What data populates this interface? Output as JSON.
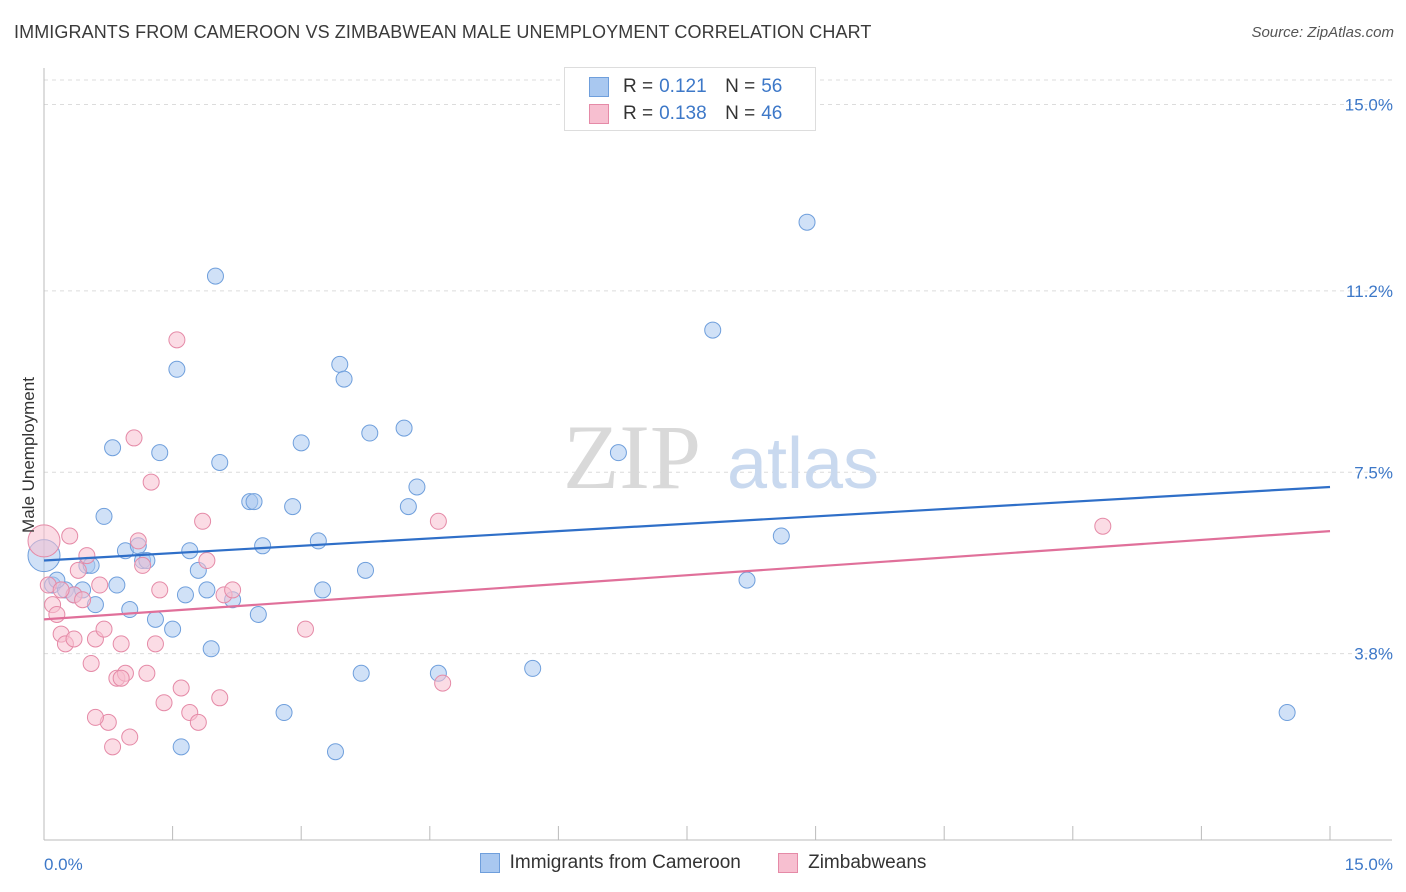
{
  "title": "IMMIGRANTS FROM CAMEROON VS ZIMBABWEAN MALE UNEMPLOYMENT CORRELATION CHART",
  "source": "Source: ZipAtlas.com",
  "watermark": {
    "zip": "ZIP",
    "atlas": "atlas"
  },
  "legend_top": [
    {
      "r_label": "R =",
      "r_value": "0.121",
      "n_label": "N =",
      "n_value": "56",
      "color": "#a9c8f0",
      "border": "#6f9fdc"
    },
    {
      "r_label": "R =",
      "r_value": "0.138",
      "n_label": "N =",
      "n_value": "46",
      "color": "#f7bfd0",
      "border": "#e58aa7"
    }
  ],
  "legend_bottom": [
    {
      "label": "Immigrants from Cameroon",
      "color": "#a9c8f0",
      "border": "#6f9fdc"
    },
    {
      "label": "Zimbabweans",
      "color": "#f7bfd0",
      "border": "#e58aa7"
    }
  ],
  "chart_data": {
    "type": "scatter",
    "title": "IMMIGRANTS FROM CAMEROON VS ZIMBABWEAN MALE UNEMPLOYMENT CORRELATION CHART",
    "xlabel": "",
    "ylabel": "Male Unemployment",
    "xlim": [
      0,
      15
    ],
    "ylim": [
      0,
      15.5
    ],
    "x_tick_labels": [
      {
        "value": 0,
        "label": "0.0%"
      },
      {
        "value": 15,
        "label": "15.0%"
      }
    ],
    "x_ticks_minor": [
      0,
      1.5,
      3,
      4.5,
      6,
      7.5,
      9,
      10.5,
      12,
      13.5,
      15
    ],
    "y_ticks": [
      {
        "value": 3.8,
        "label": "3.8%"
      },
      {
        "value": 7.5,
        "label": "7.5%"
      },
      {
        "value": 11.2,
        "label": "11.2%"
      },
      {
        "value": 15.0,
        "label": "15.0%"
      }
    ],
    "grid": true,
    "series": [
      {
        "name": "Immigrants from Cameroon",
        "color": "#a9c8f0",
        "stroke": "#6f9fdc",
        "trend": {
          "x": [
            0,
            15
          ],
          "y": [
            5.7,
            7.2
          ],
          "color": "#2f6fc8"
        },
        "points": [
          [
            0.0,
            5.8
          ],
          [
            0.1,
            5.2
          ],
          [
            0.25,
            5.1
          ],
          [
            0.35,
            5.0
          ],
          [
            0.5,
            5.6
          ],
          [
            0.6,
            4.8
          ],
          [
            0.7,
            6.6
          ],
          [
            0.8,
            8.0
          ],
          [
            0.85,
            5.2
          ],
          [
            0.95,
            5.9
          ],
          [
            1.0,
            4.7
          ],
          [
            1.1,
            6.0
          ],
          [
            1.15,
            5.7
          ],
          [
            1.2,
            5.7
          ],
          [
            1.3,
            4.5
          ],
          [
            1.35,
            7.9
          ],
          [
            1.5,
            4.3
          ],
          [
            1.55,
            9.6
          ],
          [
            1.6,
            1.9
          ],
          [
            1.65,
            5.0
          ],
          [
            1.7,
            5.9
          ],
          [
            1.8,
            5.5
          ],
          [
            1.9,
            5.1
          ],
          [
            1.95,
            3.9
          ],
          [
            2.0,
            11.5
          ],
          [
            2.05,
            7.7
          ],
          [
            2.2,
            4.9
          ],
          [
            2.4,
            6.9
          ],
          [
            2.45,
            6.9
          ],
          [
            2.5,
            4.6
          ],
          [
            2.55,
            6.0
          ],
          [
            2.8,
            2.6
          ],
          [
            2.9,
            6.8
          ],
          [
            3.0,
            8.1
          ],
          [
            3.2,
            6.1
          ],
          [
            3.25,
            5.1
          ],
          [
            3.4,
            1.8
          ],
          [
            3.45,
            9.7
          ],
          [
            3.5,
            9.4
          ],
          [
            3.7,
            3.4
          ],
          [
            3.75,
            5.5
          ],
          [
            3.8,
            8.3
          ],
          [
            4.2,
            8.4
          ],
          [
            4.25,
            6.8
          ],
          [
            4.35,
            7.2
          ],
          [
            4.6,
            3.4
          ],
          [
            5.7,
            3.5
          ],
          [
            6.7,
            7.9
          ],
          [
            7.8,
            10.4
          ],
          [
            8.2,
            5.3
          ],
          [
            8.6,
            6.2
          ],
          [
            8.9,
            12.6
          ],
          [
            14.5,
            2.6
          ],
          [
            0.15,
            5.3
          ],
          [
            0.45,
            5.1
          ],
          [
            0.55,
            5.6
          ]
        ]
      },
      {
        "name": "Zimbabweans",
        "color": "#f7bfd0",
        "stroke": "#e58aa7",
        "trend": {
          "x": [
            0,
            15
          ],
          "y": [
            4.5,
            6.3
          ],
          "color": "#e0709a"
        },
        "points": [
          [
            0.0,
            6.1
          ],
          [
            0.05,
            5.2
          ],
          [
            0.1,
            4.8
          ],
          [
            0.15,
            4.6
          ],
          [
            0.2,
            4.2
          ],
          [
            0.25,
            4.0
          ],
          [
            0.3,
            6.2
          ],
          [
            0.35,
            5.0
          ],
          [
            0.4,
            5.5
          ],
          [
            0.45,
            4.9
          ],
          [
            0.5,
            5.8
          ],
          [
            0.55,
            3.6
          ],
          [
            0.6,
            4.1
          ],
          [
            0.65,
            5.2
          ],
          [
            0.7,
            4.3
          ],
          [
            0.75,
            2.4
          ],
          [
            0.8,
            1.9
          ],
          [
            0.85,
            3.3
          ],
          [
            0.9,
            4.0
          ],
          [
            0.95,
            3.4
          ],
          [
            1.0,
            2.1
          ],
          [
            1.05,
            8.2
          ],
          [
            1.1,
            6.1
          ],
          [
            1.15,
            5.6
          ],
          [
            1.2,
            3.4
          ],
          [
            1.25,
            7.3
          ],
          [
            1.3,
            4.0
          ],
          [
            1.35,
            5.1
          ],
          [
            1.4,
            2.8
          ],
          [
            1.55,
            10.2
          ],
          [
            1.6,
            3.1
          ],
          [
            1.7,
            2.6
          ],
          [
            1.8,
            2.4
          ],
          [
            1.85,
            6.5
          ],
          [
            1.9,
            5.7
          ],
          [
            2.05,
            2.9
          ],
          [
            2.1,
            5.0
          ],
          [
            2.2,
            5.1
          ],
          [
            3.05,
            4.3
          ],
          [
            4.6,
            6.5
          ],
          [
            4.65,
            3.2
          ],
          [
            12.35,
            6.4
          ],
          [
            0.35,
            4.1
          ],
          [
            0.6,
            2.5
          ],
          [
            0.2,
            5.1
          ],
          [
            0.9,
            3.3
          ]
        ]
      }
    ]
  }
}
